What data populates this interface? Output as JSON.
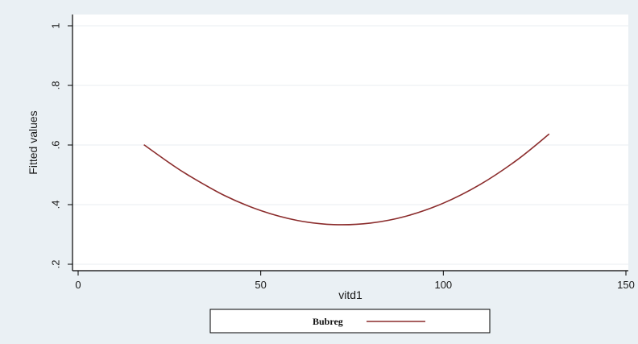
{
  "chart_data": {
    "type": "line",
    "title": "",
    "xlabel": "vitd1",
    "ylabel": "Fitted values",
    "xlim": [
      0,
      150
    ],
    "ylim": [
      0.2,
      1.0
    ],
    "x_ticks": [
      "0",
      "50",
      "100",
      "150"
    ],
    "x_tick_values": [
      0,
      50,
      100,
      150
    ],
    "y_ticks": [
      ".2",
      ".4",
      ".6",
      ".8",
      "1"
    ],
    "y_tick_values": [
      0.2,
      0.4,
      0.6,
      0.8,
      1.0
    ],
    "grid": "horizontal",
    "legend_position": "bottom",
    "series": [
      {
        "name": "Bubreg",
        "color": "#8b2c2c",
        "x": [
          18,
          25,
          30,
          40,
          50,
          60,
          70,
          80,
          90,
          100,
          110,
          120,
          129
        ],
        "y": [
          0.601,
          0.54,
          0.5,
          0.431,
          0.38,
          0.347,
          0.333,
          0.338,
          0.362,
          0.405,
          0.467,
          0.548,
          0.637
        ]
      }
    ],
    "colors": {
      "outer_background": "#eaf0f4",
      "plot_background": "#ffffff",
      "grid": "#e8eef2",
      "axis": "#000000"
    }
  }
}
